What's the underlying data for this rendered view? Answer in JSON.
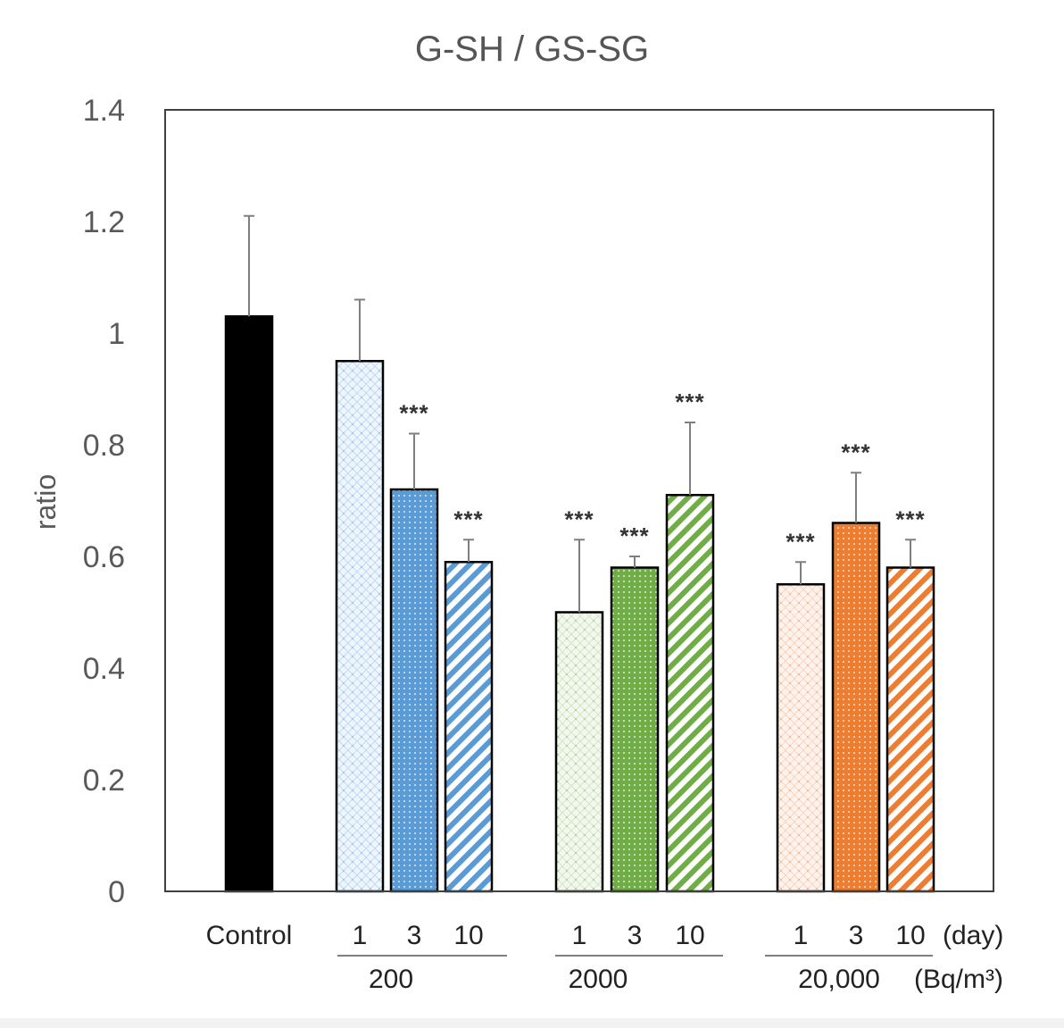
{
  "chart_data": {
    "type": "bar",
    "title": "G-SH / GS-SG",
    "ylabel": "ratio",
    "ylim": [
      0,
      1.4
    ],
    "yticks": [
      0,
      0.2,
      0.4,
      0.6,
      0.8,
      1,
      1.2,
      1.4
    ],
    "ytick_labels": [
      "0",
      "0.2",
      "0.4",
      "0.6",
      "0.8",
      "1",
      "1.2",
      "1.4"
    ],
    "x_unit_day": "(day)",
    "x_unit_dose": "(Bq/m³)",
    "bars": [
      {
        "name": "control",
        "group": "Control",
        "label": "Control",
        "value": 1.03,
        "error": 0.18,
        "sig": "",
        "color": "#000000",
        "pattern": "solid"
      },
      {
        "name": "200-day1",
        "group": "200",
        "label": "1",
        "value": 0.95,
        "error": 0.11,
        "sig": "",
        "color": "#5b9bd5",
        "pattern": "dots-light"
      },
      {
        "name": "200-day3",
        "group": "200",
        "label": "3",
        "value": 0.72,
        "error": 0.1,
        "sig": "***",
        "color": "#5b9bd5",
        "pattern": "dots-dense"
      },
      {
        "name": "200-day10",
        "group": "200",
        "label": "10",
        "value": 0.59,
        "error": 0.04,
        "sig": "***",
        "color": "#5b9bd5",
        "pattern": "stripes"
      },
      {
        "name": "2000-day1",
        "group": "2000",
        "label": "1",
        "value": 0.5,
        "error": 0.13,
        "sig": "***",
        "color": "#70ad47",
        "pattern": "dots-light"
      },
      {
        "name": "2000-day3",
        "group": "2000",
        "label": "3",
        "value": 0.58,
        "error": 0.02,
        "sig": "***",
        "color": "#70ad47",
        "pattern": "dots-dense"
      },
      {
        "name": "2000-day10",
        "group": "2000",
        "label": "10",
        "value": 0.71,
        "error": 0.13,
        "sig": "***",
        "color": "#70ad47",
        "pattern": "stripes"
      },
      {
        "name": "20000-day1",
        "group": "20,000",
        "label": "1",
        "value": 0.55,
        "error": 0.04,
        "sig": "***",
        "color": "#ed7d31",
        "pattern": "dots-light"
      },
      {
        "name": "20000-day3",
        "group": "20,000",
        "label": "3",
        "value": 0.66,
        "error": 0.09,
        "sig": "***",
        "color": "#ed7d31",
        "pattern": "dots-dense"
      },
      {
        "name": "20000-day10",
        "group": "20,000",
        "label": "10",
        "value": 0.58,
        "error": 0.05,
        "sig": "***",
        "color": "#ed7d31",
        "pattern": "stripes"
      }
    ],
    "groups": [
      {
        "name": "200",
        "label": "200"
      },
      {
        "name": "2000",
        "label": "2000"
      },
      {
        "name": "20000",
        "label": "20,000"
      }
    ]
  }
}
